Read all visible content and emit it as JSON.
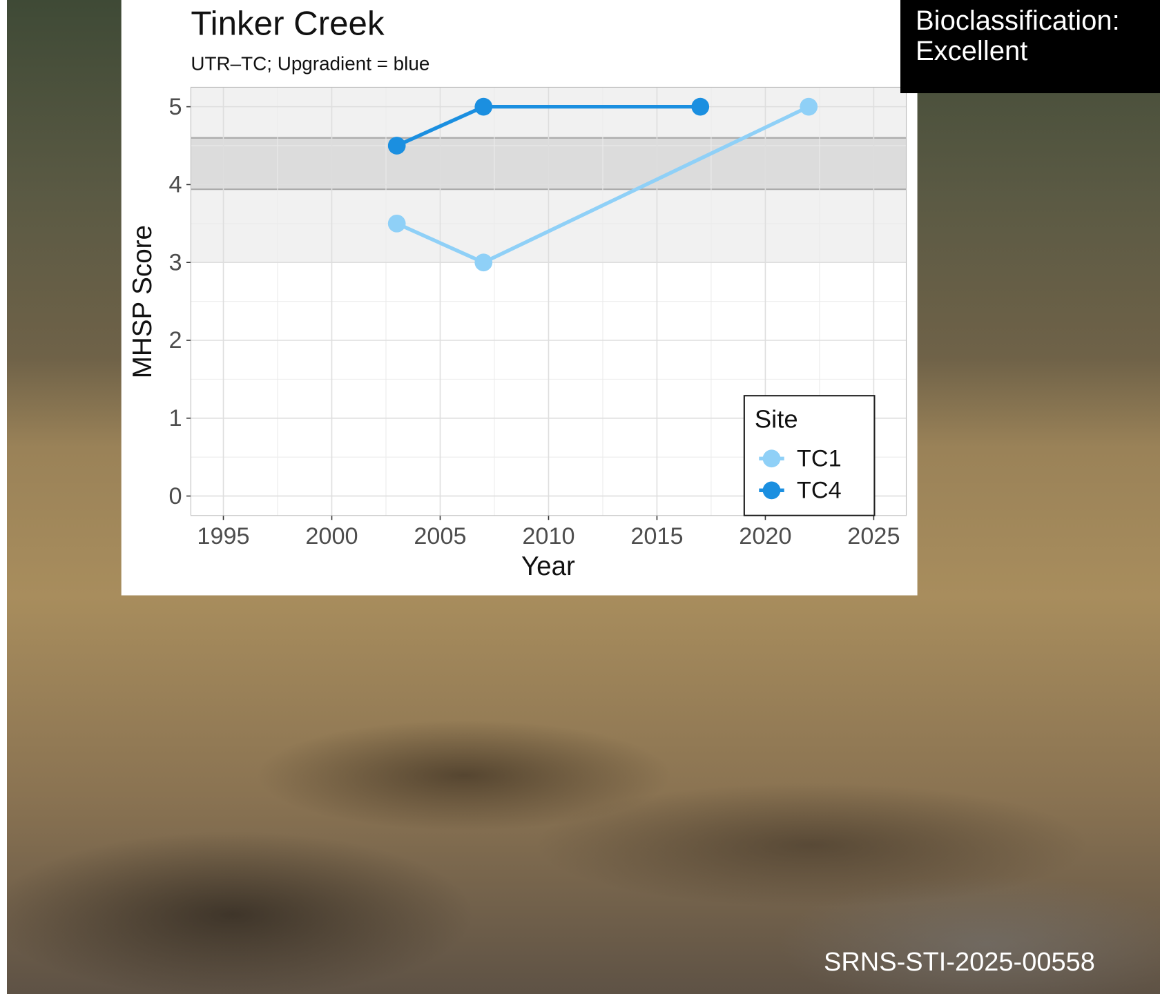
{
  "chart_data": {
    "type": "line",
    "title": "Tinker Creek",
    "subtitle": "UTR–TC; Upgradient = blue",
    "x_label": "Year",
    "y_label": "MHSP Score",
    "legend_title": "Site",
    "series": [
      {
        "name": "TC1",
        "color": "#8fd0f7",
        "x": [
          2003,
          2007,
          2022
        ],
        "values": [
          3.5,
          3,
          5
        ]
      },
      {
        "name": "TC4",
        "color": "#1b8fe0",
        "x": [
          2003,
          2007,
          2017
        ],
        "values": [
          4.5,
          5,
          5
        ]
      }
    ],
    "xlim": [
      1993.5,
      2026.5
    ],
    "xticks": [
      1995,
      2000,
      2005,
      2010,
      2015,
      2020,
      2025
    ],
    "ylim": [
      -0.25,
      5.25
    ],
    "yticks": [
      0,
      1,
      2,
      3,
      4,
      5
    ],
    "grid": true,
    "legend_position": "bottom-right",
    "bands": [
      {
        "from": 3,
        "to": 5.25,
        "color": "#f1f1f1"
      },
      {
        "from": 3.94,
        "to": 4.6,
        "color": "#dcdcdc"
      }
    ]
  },
  "overlay": {
    "label": "Bioclassification: Excellent"
  },
  "footer": {
    "id": "SRNS-STI-2025-00558"
  }
}
